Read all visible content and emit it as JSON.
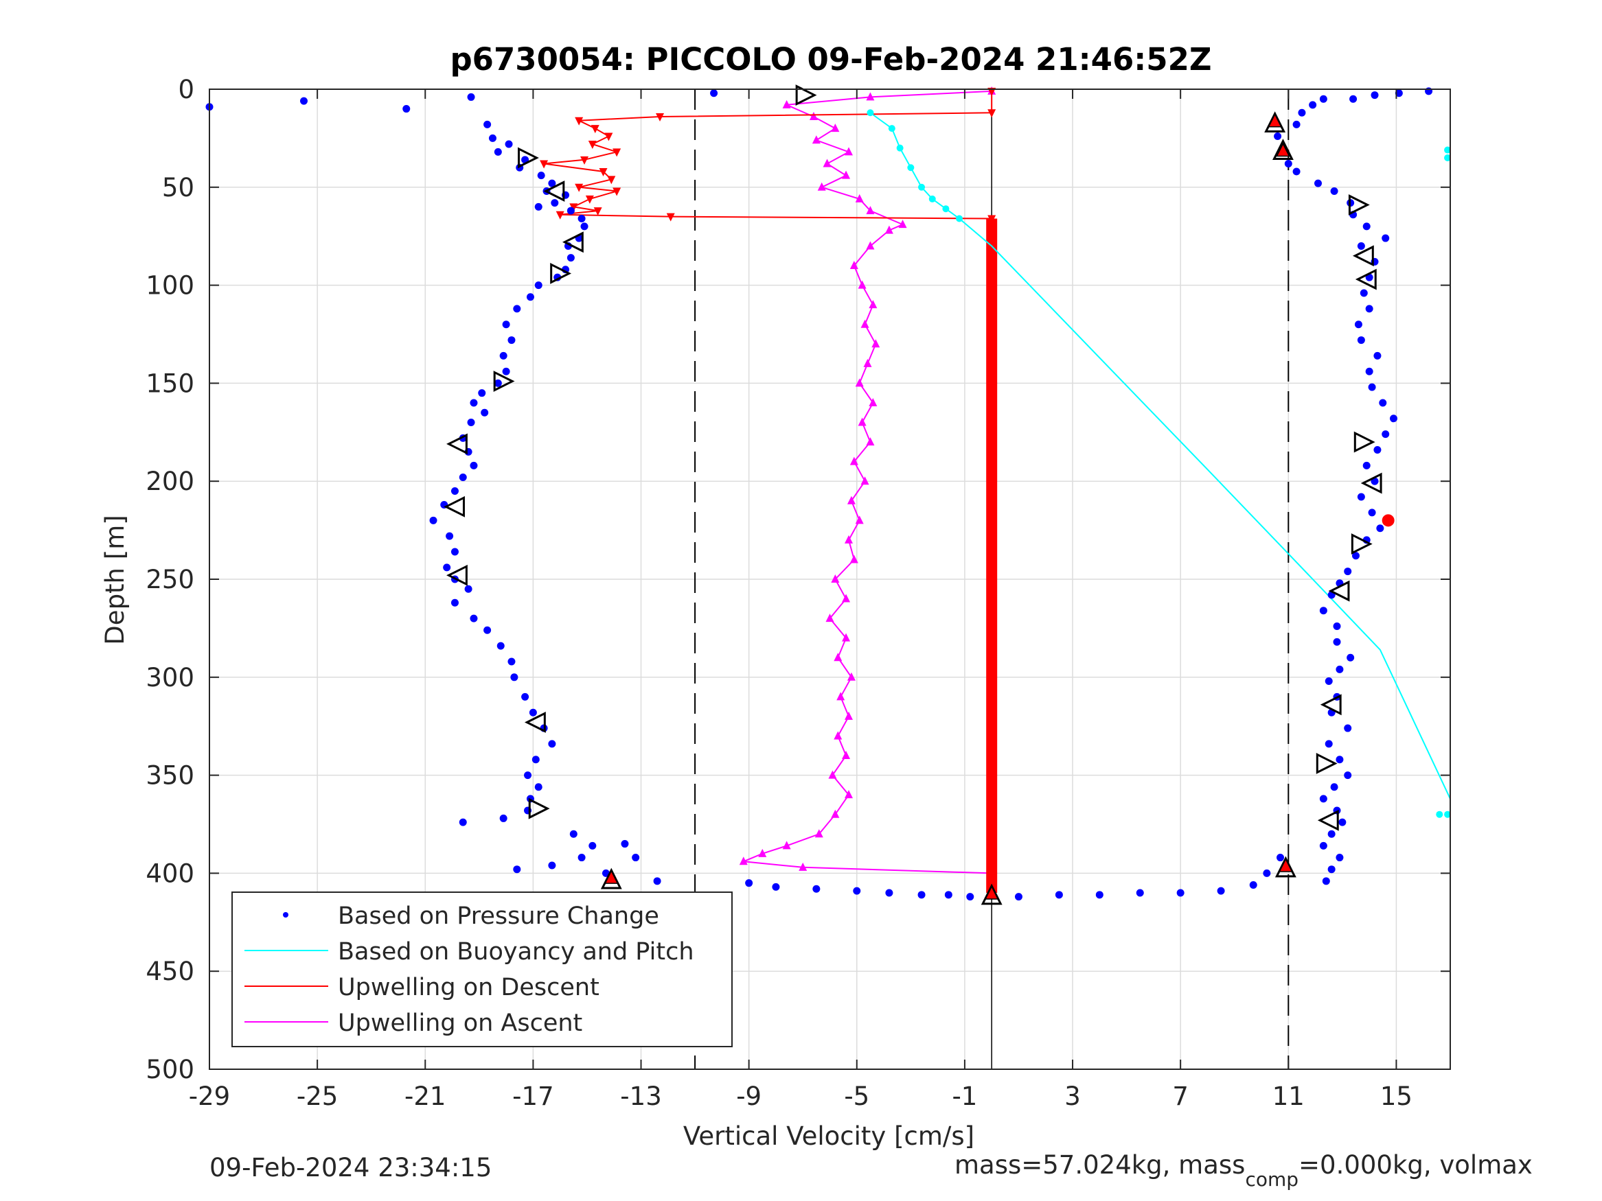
{
  "chart_data": {
    "type": "scatter",
    "title": "p6730054: PICCOLO 09-Feb-2024 21:46:52Z",
    "xlabel": "Vertical Velocity [cm/s]",
    "ylabel": "Depth [m]",
    "xlim": [
      -29,
      17
    ],
    "ylim": [
      0,
      500
    ],
    "y_reversed": true,
    "grid": true,
    "xticks": [
      -29,
      -25,
      -21,
      -17,
      -13,
      -9,
      -5,
      -1,
      3,
      7,
      11,
      15
    ],
    "yticks": [
      0,
      50,
      100,
      150,
      200,
      250,
      300,
      350,
      400,
      450,
      500
    ],
    "reference_lines": {
      "dashed_x": [
        -11,
        11
      ],
      "solid_x": [
        0
      ]
    },
    "legend_position": "bottom-left",
    "series": [
      {
        "name": "Based on Pressure Change",
        "style": "dots",
        "color": "#0000ff",
        "descent_points": [
          [
            -29,
            9
          ],
          [
            -25.5,
            6
          ],
          [
            -21.7,
            10
          ],
          [
            -19.3,
            4
          ],
          [
            -18.7,
            18
          ],
          [
            -18.5,
            25
          ],
          [
            -17.9,
            28
          ],
          [
            -18.3,
            32
          ],
          [
            -17.3,
            36
          ],
          [
            -17.5,
            40
          ],
          [
            -16.7,
            44
          ],
          [
            -16.3,
            48
          ],
          [
            -16.5,
            52
          ],
          [
            -15.8,
            54
          ],
          [
            -16.2,
            58
          ],
          [
            -16.8,
            60
          ],
          [
            -15.6,
            62
          ],
          [
            -15.2,
            66
          ],
          [
            -15.1,
            70
          ],
          [
            -15.3,
            76
          ],
          [
            -15.7,
            80
          ],
          [
            -15.6,
            86
          ],
          [
            -15.8,
            92
          ],
          [
            -16.1,
            96
          ],
          [
            -16.8,
            100
          ],
          [
            -17.1,
            106
          ],
          [
            -17.6,
            112
          ],
          [
            -18,
            120
          ],
          [
            -17.8,
            128
          ],
          [
            -18.1,
            136
          ],
          [
            -18,
            144
          ],
          [
            -18.3,
            150
          ],
          [
            -18.9,
            155
          ],
          [
            -19.2,
            160
          ],
          [
            -18.8,
            165
          ],
          [
            -19.3,
            170
          ],
          [
            -19.6,
            178
          ],
          [
            -19.4,
            185
          ],
          [
            -19.2,
            192
          ],
          [
            -19.6,
            198
          ],
          [
            -19.9,
            205
          ],
          [
            -20.3,
            212
          ],
          [
            -20.7,
            220
          ],
          [
            -20.1,
            228
          ],
          [
            -19.9,
            236
          ],
          [
            -20.2,
            244
          ],
          [
            -19.9,
            250
          ],
          [
            -19.4,
            255
          ],
          [
            -19.9,
            262
          ],
          [
            -19.2,
            270
          ],
          [
            -18.7,
            276
          ],
          [
            -18.2,
            284
          ],
          [
            -17.8,
            292
          ],
          [
            -17.7,
            300
          ],
          [
            -17.3,
            310
          ],
          [
            -17,
            318
          ],
          [
            -16.6,
            326
          ],
          [
            -16.3,
            334
          ],
          [
            -16.9,
            342
          ],
          [
            -17.2,
            350
          ],
          [
            -16.8,
            356
          ],
          [
            -17.1,
            362
          ],
          [
            -17.2,
            368
          ],
          [
            -18.1,
            372
          ],
          [
            -19.6,
            374
          ],
          [
            -15.5,
            380
          ],
          [
            -14.8,
            386
          ],
          [
            -15.2,
            392
          ],
          [
            -16.3,
            396
          ],
          [
            -17.6,
            398
          ],
          [
            -13.6,
            385
          ],
          [
            -13.2,
            392
          ],
          [
            -14.3,
            400
          ],
          [
            -12.4,
            404
          ],
          [
            -10.3,
            2
          ],
          [
            -9,
            405
          ],
          [
            -8,
            407
          ],
          [
            -6.5,
            408
          ],
          [
            -5,
            409
          ],
          [
            -3.8,
            410
          ],
          [
            -2.6,
            411
          ],
          [
            -1.6,
            411
          ],
          [
            -0.8,
            412
          ],
          [
            1,
            412
          ],
          [
            2.5,
            411
          ],
          [
            4,
            411
          ],
          [
            5.5,
            410
          ],
          [
            7,
            410
          ],
          [
            8.5,
            409
          ],
          [
            9.7,
            406
          ],
          [
            10.2,
            400
          ],
          [
            10.7,
            392
          ]
        ],
        "ascent_points": [
          [
            12.4,
            404
          ],
          [
            12.6,
            398
          ],
          [
            12.9,
            392
          ],
          [
            12.3,
            386
          ],
          [
            12.6,
            380
          ],
          [
            13,
            374
          ],
          [
            12.8,
            368
          ],
          [
            12.3,
            362
          ],
          [
            12.7,
            356
          ],
          [
            13.2,
            350
          ],
          [
            12.9,
            342
          ],
          [
            12.5,
            334
          ],
          [
            13.2,
            326
          ],
          [
            12.6,
            318
          ],
          [
            12.8,
            310
          ],
          [
            12.5,
            302
          ],
          [
            12.9,
            296
          ],
          [
            13.3,
            290
          ],
          [
            12.8,
            282
          ],
          [
            12.8,
            274
          ],
          [
            12.3,
            266
          ],
          [
            12.6,
            258
          ],
          [
            12.9,
            252
          ],
          [
            13.2,
            246
          ],
          [
            13.5,
            238
          ],
          [
            13.9,
            230
          ],
          [
            14.4,
            224
          ],
          [
            14.1,
            216
          ],
          [
            13.7,
            208
          ],
          [
            14.2,
            200
          ],
          [
            13.9,
            192
          ],
          [
            14.3,
            184
          ],
          [
            14.6,
            176
          ],
          [
            14.9,
            168
          ],
          [
            14.5,
            160
          ],
          [
            14.1,
            152
          ],
          [
            14,
            144
          ],
          [
            14.3,
            136
          ],
          [
            13.7,
            128
          ],
          [
            13.6,
            120
          ],
          [
            14,
            112
          ],
          [
            13.8,
            104
          ],
          [
            14,
            96
          ],
          [
            14.2,
            88
          ],
          [
            13.7,
            80
          ],
          [
            14.6,
            76
          ],
          [
            13.9,
            70
          ],
          [
            13.4,
            64
          ],
          [
            13.3,
            58
          ],
          [
            12.7,
            52
          ],
          [
            12.1,
            48
          ],
          [
            11.3,
            42
          ],
          [
            11,
            38
          ],
          [
            10.8,
            30
          ],
          [
            10.6,
            24
          ],
          [
            11.3,
            18
          ],
          [
            11.5,
            12
          ],
          [
            11.9,
            8
          ],
          [
            12.3,
            5
          ],
          [
            13.4,
            5
          ],
          [
            14.2,
            3
          ],
          [
            15.1,
            2
          ],
          [
            16.2,
            1
          ]
        ]
      },
      {
        "name": "Based on Buoyancy and Pitch",
        "style": "line",
        "color": "#00ffff",
        "points": [
          [
            -4.5,
            12
          ],
          [
            -3.7,
            20
          ],
          [
            -3.4,
            30
          ],
          [
            -3,
            40
          ],
          [
            -2.6,
            50
          ],
          [
            -2.2,
            56
          ],
          [
            -1.7,
            61
          ],
          [
            -1.2,
            66
          ],
          [
            0,
            80
          ],
          [
            4,
            137
          ],
          [
            8,
            194
          ],
          [
            11,
            237
          ],
          [
            14.4,
            286
          ],
          [
            17,
            362
          ]
        ],
        "markers_near_right_edge": [
          [
            16.9,
            31
          ],
          [
            16.9,
            35
          ],
          [
            16.6,
            370
          ],
          [
            16.9,
            370
          ]
        ]
      },
      {
        "name": "Upwelling on Descent",
        "style": "line",
        "color": "#ff0000",
        "points": [
          [
            0,
            1
          ],
          [
            0,
            12
          ],
          [
            -12.3,
            14
          ],
          [
            -15.3,
            16
          ],
          [
            -14.7,
            20
          ],
          [
            -14.2,
            24
          ],
          [
            -14.8,
            28
          ],
          [
            -13.9,
            32
          ],
          [
            -15.1,
            36
          ],
          [
            -16.6,
            38
          ],
          [
            -14.4,
            42
          ],
          [
            -14.1,
            46
          ],
          [
            -15.3,
            50
          ],
          [
            -13.9,
            52
          ],
          [
            -14.9,
            56
          ],
          [
            -15.5,
            60
          ],
          [
            -14.6,
            62
          ],
          [
            -16,
            64
          ],
          [
            -11.9,
            65
          ],
          [
            0,
            66
          ],
          [
            0,
            100
          ],
          [
            0,
            150
          ],
          [
            0,
            200
          ],
          [
            0,
            250
          ],
          [
            0,
            300
          ],
          [
            0,
            350
          ],
          [
            0,
            400
          ],
          [
            0,
            410
          ]
        ]
      },
      {
        "name": "Upwelling on Ascent",
        "style": "line",
        "color": "#ff00ff",
        "points": [
          [
            0,
            400
          ],
          [
            -7,
            397
          ],
          [
            -9.2,
            394
          ],
          [
            -8.5,
            390
          ],
          [
            -7.6,
            386
          ],
          [
            -6.4,
            380
          ],
          [
            -5.8,
            370
          ],
          [
            -5.3,
            360
          ],
          [
            -5.9,
            350
          ],
          [
            -5.4,
            340
          ],
          [
            -5.7,
            330
          ],
          [
            -5.3,
            320
          ],
          [
            -5.6,
            310
          ],
          [
            -5.2,
            300
          ],
          [
            -5.7,
            290
          ],
          [
            -5.4,
            280
          ],
          [
            -6,
            270
          ],
          [
            -5.4,
            260
          ],
          [
            -5.8,
            250
          ],
          [
            -5.1,
            240
          ],
          [
            -5.3,
            230
          ],
          [
            -4.9,
            220
          ],
          [
            -5.2,
            210
          ],
          [
            -4.7,
            200
          ],
          [
            -5.1,
            190
          ],
          [
            -4.5,
            180
          ],
          [
            -4.8,
            170
          ],
          [
            -4.4,
            160
          ],
          [
            -4.9,
            150
          ],
          [
            -4.6,
            140
          ],
          [
            -4.3,
            130
          ],
          [
            -4.7,
            120
          ],
          [
            -4.4,
            110
          ],
          [
            -4.8,
            100
          ],
          [
            -5.1,
            90
          ],
          [
            -4.5,
            80
          ],
          [
            -3.8,
            72
          ],
          [
            -3.3,
            69
          ],
          [
            -4.5,
            62
          ],
          [
            -4.9,
            56
          ],
          [
            -6.3,
            50
          ],
          [
            -5.4,
            44
          ],
          [
            -6.1,
            38
          ],
          [
            -5.3,
            32
          ],
          [
            -6.5,
            26
          ],
          [
            -5.8,
            20
          ],
          [
            -6.6,
            14
          ],
          [
            -7.6,
            8
          ],
          [
            -4.5,
            4
          ],
          [
            0,
            1
          ]
        ]
      }
    ],
    "marker_triangles_black": [
      [
        -17.2,
        35,
        "right"
      ],
      [
        -16.2,
        52,
        "left"
      ],
      [
        -15.5,
        78,
        "left"
      ],
      [
        -16,
        94,
        "right"
      ],
      [
        -18.1,
        149,
        "right"
      ],
      [
        -19.8,
        181,
        "left"
      ],
      [
        -19.9,
        213,
        "left"
      ],
      [
        -19.8,
        248,
        "left"
      ],
      [
        -16.9,
        323,
        "left"
      ],
      [
        -16.8,
        367,
        "right"
      ],
      [
        -14.1,
        403,
        "up"
      ],
      [
        -6.9,
        3,
        "right"
      ],
      [
        10.5,
        17,
        "up"
      ],
      [
        10.8,
        31,
        "up"
      ],
      [
        13.6,
        59,
        "right"
      ],
      [
        13.8,
        85,
        "left"
      ],
      [
        13.9,
        97,
        "left"
      ],
      [
        13.8,
        180,
        "right"
      ],
      [
        14.1,
        201,
        "left"
      ],
      [
        13.7,
        232,
        "right"
      ],
      [
        12.9,
        256,
        "left"
      ],
      [
        12.6,
        314,
        "left"
      ],
      [
        12.4,
        344,
        "right"
      ],
      [
        12.5,
        373,
        "left"
      ],
      [
        10.9,
        397,
        "up"
      ],
      [
        0,
        411,
        "up"
      ]
    ],
    "marker_triangles_red": [
      [
        10.5,
        16
      ],
      [
        10.8,
        31
      ],
      [
        -14.1,
        402
      ],
      [
        10.9,
        396
      ],
      [
        0,
        410
      ]
    ],
    "marker_circle_red": [
      [
        14.7,
        220
      ]
    ],
    "footer_left": "09-Feb-2024 23:34:15",
    "footer_right": {
      "text_before": "mass=57.024kg, mass",
      "subscript": "comp",
      "text_after": "=0.000kg, volmax"
    }
  }
}
